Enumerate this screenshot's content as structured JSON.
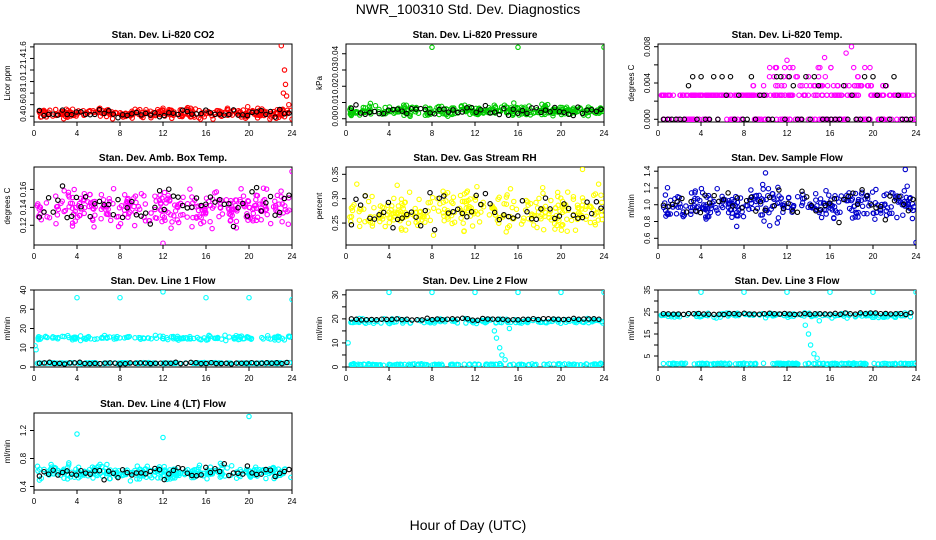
{
  "figure": {
    "title": "NWR_100310  Std. Dev. Diagnostics",
    "xlabel": "Hour of Day (UTC)"
  },
  "colors": {
    "red": "#ff0000",
    "green": "#00cc00",
    "magenta": "#ff00ff",
    "yellow": "#ffff00",
    "blue": "#0000cc",
    "cyan": "#00ffff",
    "black": "#000000"
  },
  "chart_data": [
    {
      "id": "li820-co2",
      "type": "scatter",
      "title": "Stan. Dev. Li-820 CO2",
      "ylabel": "Licor ppm",
      "xlim": [
        0,
        24
      ],
      "ylim": [
        0.3,
        1.65
      ],
      "xticks": [
        0,
        4,
        8,
        12,
        16,
        20,
        24
      ],
      "yticks": [
        0.4,
        0.6,
        0.8,
        1.0,
        1.2,
        1.4,
        1.6
      ],
      "ytick_labels": [
        "0.4",
        "0.6",
        "0.8",
        "1.0",
        "1.2",
        "1.4",
        "1.6"
      ],
      "color": "red",
      "base": 0.45,
      "spread": 0.06,
      "min": 0.35,
      "extras": [
        [
          23.0,
          1.62
        ],
        [
          23.3,
          1.2
        ],
        [
          23.4,
          0.95
        ],
        [
          23.5,
          0.75
        ],
        [
          23.7,
          0.6
        ],
        [
          23.9,
          0.5
        ],
        [
          24.0,
          0.35
        ],
        [
          23.2,
          0.8
        ]
      ]
    },
    {
      "id": "li820-pressure",
      "type": "scatter",
      "title": "Stan. Dev. Li-820 Pressure",
      "ylabel": "kPa",
      "xlim": [
        0,
        24
      ],
      "ylim": [
        -0.002,
        0.046
      ],
      "xticks": [
        0,
        4,
        8,
        12,
        16,
        20,
        24
      ],
      "yticks": [
        0.0,
        0.01,
        0.02,
        0.03,
        0.04
      ],
      "ytick_labels": [
        "0.00",
        "0.01",
        "0.02",
        "0.03",
        "0.04"
      ],
      "color": "green",
      "base": 0.005,
      "spread": 0.0022,
      "min": 0.0005,
      "extras": [
        [
          8.0,
          0.044
        ],
        [
          16.0,
          0.044
        ],
        [
          24.0,
          0.044
        ]
      ]
    },
    {
      "id": "li820-temp",
      "type": "scatter",
      "title": "Stan. Dev. Li-820 Temp.",
      "ylabel": "degrees C",
      "xlim": [
        0,
        24
      ],
      "ylim": [
        -0.0003,
        0.0083
      ],
      "xticks": [
        0,
        4,
        8,
        12,
        16,
        20,
        24
      ],
      "yticks": [
        0.0,
        0.002,
        0.004,
        0.006,
        0.008
      ],
      "ytick_labels": [
        "0.000",
        "",
        "0.004",
        "",
        "0.008"
      ],
      "color": "magenta",
      "mode": "quantized",
      "levels": [
        0.0,
        0.00265,
        0.0037,
        0.0047,
        0.0057
      ],
      "extras": [
        [
          18.0,
          0.008
        ],
        [
          15.5,
          0.0068
        ],
        [
          12.0,
          0.0065
        ],
        [
          17.5,
          0.0073
        ]
      ]
    },
    {
      "id": "amb-box-temp",
      "type": "scatter",
      "title": "Stan. Dev. Amb. Box Temp.",
      "ylabel": "degrees C",
      "xlim": [
        0,
        24
      ],
      "ylim": [
        0.098,
        0.185
      ],
      "xticks": [
        0,
        4,
        8,
        12,
        16,
        20,
        24
      ],
      "yticks": [
        0.12,
        0.14,
        0.16
      ],
      "ytick_labels": [
        "0.12",
        "0.14",
        "0.16"
      ],
      "color": "magenta",
      "base": 0.14,
      "spread": 0.014,
      "min": 0.1,
      "extras": [
        [
          12.0,
          0.1
        ],
        [
          24.0,
          0.18
        ]
      ]
    },
    {
      "id": "gas-stream-rh",
      "type": "scatter",
      "title": "Stan. Dev. Gas Stream RH",
      "ylabel": "percent",
      "xlim": [
        0,
        24
      ],
      "ylim": [
        0.205,
        0.365
      ],
      "xticks": [
        0,
        4,
        8,
        12,
        16,
        20,
        24
      ],
      "yticks": [
        0.25,
        0.3,
        0.35
      ],
      "ytick_labels": [
        "0.25",
        "0.30",
        "0.35"
      ],
      "color": "yellow",
      "base": 0.275,
      "spread": 0.03,
      "min": 0.215,
      "extras": [
        [
          1.0,
          0.33
        ],
        [
          23.5,
          0.33
        ],
        [
          22.0,
          0.36
        ]
      ]
    },
    {
      "id": "sample-flow",
      "type": "scatter",
      "title": "Stan. Dev. Sample Flow",
      "ylabel": "ml/min",
      "xlim": [
        0,
        24
      ],
      "ylim": [
        0.52,
        1.45
      ],
      "xticks": [
        0,
        4,
        8,
        12,
        16,
        20,
        24
      ],
      "yticks": [
        0.6,
        0.8,
        1.0,
        1.2,
        1.4
      ],
      "ytick_labels": [
        "0.6",
        "0.8",
        "1.0",
        "1.2",
        "1.4"
      ],
      "color": "blue",
      "base": 1.0,
      "spread": 0.13,
      "min": 0.6,
      "extras": [
        [
          24.0,
          0.55
        ],
        [
          23.0,
          1.42
        ],
        [
          10.0,
          1.38
        ]
      ]
    },
    {
      "id": "line1-flow",
      "type": "scatter",
      "title": "Stan. Dev. Line 1 Flow",
      "ylabel": "ml/min",
      "xlim": [
        0,
        24
      ],
      "ylim": [
        0,
        40
      ],
      "xticks": [
        0,
        4,
        8,
        12,
        16,
        20,
        24
      ],
      "yticks": [
        0,
        10,
        20,
        30,
        40
      ],
      "ytick_labels": [
        "0",
        "10",
        "20",
        "30",
        "40"
      ],
      "color": "cyan",
      "mode": "bands",
      "bands": [
        {
          "value": 15.2,
          "spread": 0.8
        },
        {
          "value": 2.0,
          "spread": 0.2
        }
      ],
      "black_value": 2.0,
      "extras": [
        [
          4.0,
          36
        ],
        [
          8.0,
          36
        ],
        [
          12.0,
          39
        ],
        [
          16.0,
          36
        ],
        [
          20.0,
          36
        ],
        [
          24.0,
          35
        ],
        [
          0.1,
          11
        ],
        [
          0.2,
          9
        ]
      ]
    },
    {
      "id": "line2-flow",
      "type": "scatter",
      "title": "Stan. Dev. Line 2 Flow",
      "ylabel": "ml/min",
      "xlim": [
        0,
        24
      ],
      "ylim": [
        0,
        32
      ],
      "xticks": [
        0,
        4,
        8,
        12,
        16,
        20,
        24
      ],
      "yticks": [
        0,
        5,
        10,
        15,
        20,
        25,
        30
      ],
      "ytick_labels": [
        "0",
        "",
        "10",
        "",
        "20",
        "",
        "30"
      ],
      "color": "cyan",
      "mode": "bands",
      "bands": [
        {
          "value": 19.0,
          "spread": 0.7
        },
        {
          "value": 1.0,
          "spread": 0.3
        }
      ],
      "black_value": 19.8,
      "extras": [
        [
          4.0,
          31
        ],
        [
          8.0,
          31
        ],
        [
          12.0,
          31
        ],
        [
          16.0,
          31
        ],
        [
          20.0,
          31
        ],
        [
          24.0,
          31
        ],
        [
          14.0,
          12
        ],
        [
          14.3,
          8
        ],
        [
          14.5,
          5
        ],
        [
          13.8,
          15
        ],
        [
          14.8,
          3
        ],
        [
          0.2,
          10
        ],
        [
          15.2,
          16
        ]
      ]
    },
    {
      "id": "line3-flow",
      "type": "scatter",
      "title": "Stan. Dev. Line 3 Flow",
      "ylabel": "ml/min",
      "xlim": [
        0,
        24
      ],
      "ylim": [
        0,
        35
      ],
      "xticks": [
        0,
        4,
        8,
        12,
        16,
        20,
        24
      ],
      "yticks": [
        5,
        10,
        15,
        20,
        25,
        30,
        35
      ],
      "ytick_labels": [
        "5",
        "",
        "15",
        "",
        "25",
        "",
        "35"
      ],
      "color": "cyan",
      "mode": "bands",
      "bands": [
        {
          "value": 23.5,
          "spread": 0.7
        },
        {
          "value": 1.5,
          "spread": 0.2
        }
      ],
      "black_value": 24.2,
      "extras": [
        [
          4.0,
          34
        ],
        [
          8.0,
          34
        ],
        [
          12.0,
          34
        ],
        [
          16.0,
          34
        ],
        [
          20.0,
          34
        ],
        [
          24.0,
          34
        ],
        [
          14.0,
          15
        ],
        [
          14.2,
          10
        ],
        [
          14.5,
          6
        ],
        [
          13.7,
          19
        ],
        [
          14.8,
          4
        ],
        [
          15.0,
          21
        ]
      ]
    },
    {
      "id": "line4-flow",
      "type": "scatter",
      "title": "Stan. Dev. Line 4 (LT) Flow",
      "ylabel": "ml/min",
      "xlim": [
        0,
        24
      ],
      "ylim": [
        0.35,
        1.45
      ],
      "xticks": [
        0,
        4,
        8,
        12,
        16,
        20,
        24
      ],
      "yticks": [
        0.4,
        0.8,
        1.2
      ],
      "ytick_labels": [
        "0.4",
        "0.8",
        "1.2"
      ],
      "color": "cyan",
      "base": 0.6,
      "spread": 0.07,
      "min": 0.42,
      "extras": [
        [
          4.0,
          1.15
        ],
        [
          12.0,
          1.1
        ],
        [
          20.0,
          1.4
        ]
      ]
    }
  ]
}
